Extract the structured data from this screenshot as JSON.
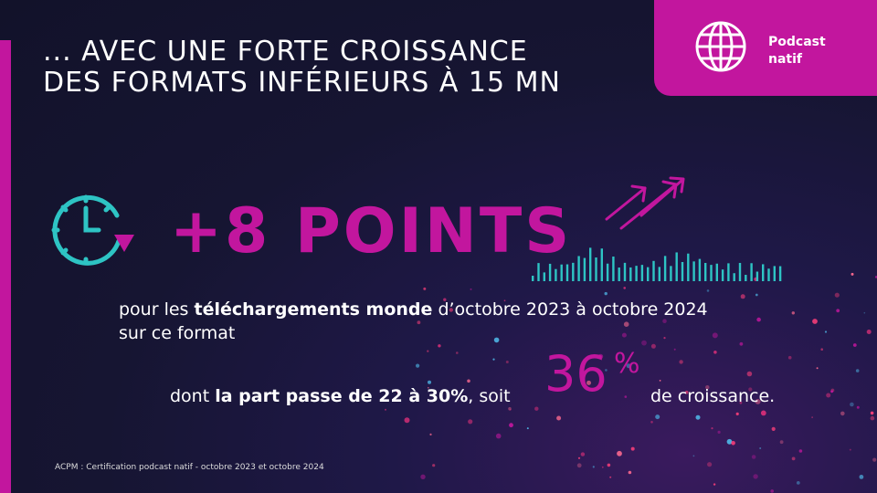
{
  "title": {
    "line1": "... AVEC UNE FORTE CROISSANCE",
    "line2": "DES FORMATS INFÉRIEURS À 15 MN"
  },
  "tag": {
    "icon": "globe-icon",
    "line1": "Podcast",
    "line2": "natif"
  },
  "headline": "+8 POINTS",
  "description": {
    "pre": "pour les ",
    "bold": "téléchargements monde",
    "post": " d’octobre 2023 à octobre 2024",
    "line2": "sur ce format"
  },
  "share": {
    "pre": "dont ",
    "bold": "la part passe de 22 à 30%",
    "post": ", soit",
    "value": "36",
    "unit": "%",
    "suffix": "de croissance."
  },
  "source": "ACPM : Certification podcast natif - octobre 2023 et octobre 2024",
  "colors": {
    "accent": "#c2169e",
    "teal": "#2ec4c4",
    "background": "#161532"
  }
}
